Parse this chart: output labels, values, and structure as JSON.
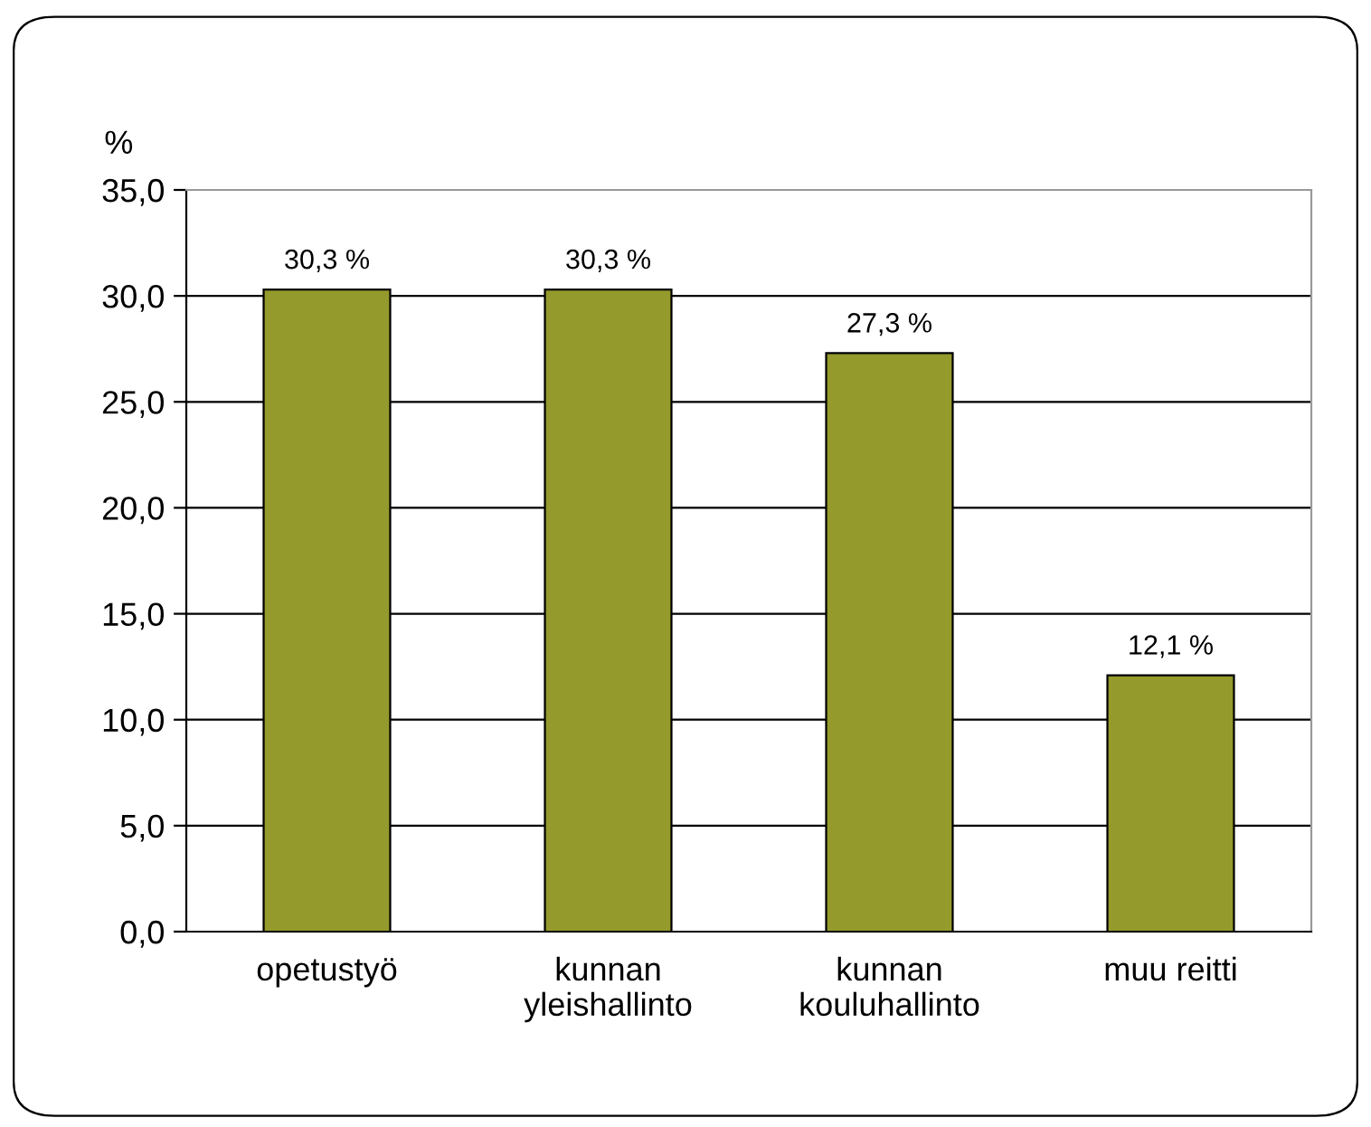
{
  "chart_data": {
    "type": "bar",
    "ylabel": "%",
    "categories": [
      "opetustyö",
      "kunnan\nyleishallinto",
      "kunnan\nkouluhallinto",
      "muu reitti"
    ],
    "values": [
      30.3,
      30.3,
      27.3,
      12.1
    ],
    "value_labels": [
      "30,3 %",
      "30,3 %",
      "27,3 %",
      "12,1 %"
    ],
    "color": "#949a2b",
    "ylim": [
      0,
      35
    ],
    "yticks": [
      {
        "value": 0,
        "label": "0,0"
      },
      {
        "value": 5,
        "label": "5,0"
      },
      {
        "value": 10,
        "label": "10,0"
      },
      {
        "value": 15,
        "label": "15,0"
      },
      {
        "value": 20,
        "label": "20,0"
      },
      {
        "value": 25,
        "label": "25,0"
      },
      {
        "value": 30,
        "label": "30,0"
      },
      {
        "value": 35,
        "label": "35,0"
      }
    ],
    "grid": "y"
  }
}
